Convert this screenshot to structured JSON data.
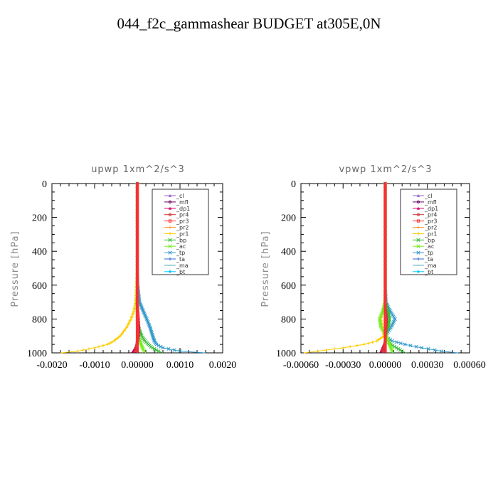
{
  "title": "044_f2c_gammashear  BUDGET at305E,0N",
  "legend_entries": [
    "_cl",
    "_mfl",
    "_dp1",
    "_pr4",
    "_pr3",
    "_pr2",
    "_pr1",
    "_bp",
    "_ac",
    "_tp",
    "_ta",
    "_ma",
    "_bt"
  ],
  "colors": {
    "_cl": "#9966cc",
    "_mfl": "#660066",
    "_dp1": "#cc0066",
    "_pr4": "#cc3333",
    "_pr3": "#ff3333",
    "_pr2": "#ff9933",
    "_pr1": "#ffcc00",
    "_bp": "#33bb33",
    "_ac": "#77ee22",
    "_tp": "#3399cc",
    "_ta": "#3366cc",
    "_ma": "#55aabb",
    "_bt": "#00ccff"
  },
  "chart_data": [
    {
      "type": "line",
      "subtitle": "upwp   1xm^2/s^3",
      "ylabel": "Pressure [hPa]",
      "ylim": [
        1000,
        0
      ],
      "xlim": [
        -0.002,
        0.002
      ],
      "xticks": [
        "-0.0020",
        "-0.0010",
        "0.00000",
        "0.0010",
        "0.0020"
      ],
      "yticks": [
        "0",
        "200",
        "400",
        "600",
        "800",
        "1000"
      ],
      "levels": [
        0,
        100,
        200,
        300,
        400,
        500,
        600,
        700,
        730,
        760,
        800,
        850,
        900,
        930,
        950,
        970,
        990,
        1000
      ],
      "series": [
        {
          "name": "_pr1",
          "values": [
            0,
            0,
            0,
            0,
            0,
            0,
            -2e-05,
            -4e-05,
            -6e-05,
            -9e-05,
            -0.00015,
            -0.00025,
            -0.0004,
            -0.00055,
            -0.0007,
            -0.001,
            -0.0014,
            -0.0018
          ]
        },
        {
          "name": "_tp",
          "values": [
            0,
            0,
            0,
            0,
            0,
            0,
            1e-05,
            5e-05,
            0.0001,
            0.00015,
            0.00022,
            0.0003,
            0.00036,
            0.0004,
            0.00045,
            0.0006,
            0.001,
            0.0016
          ]
        },
        {
          "name": "_bp",
          "values": [
            0,
            0,
            0,
            0,
            0,
            0,
            0,
            0,
            0,
            0,
            0,
            3e-05,
            0.0001,
            0.00018,
            0.00026,
            0.00035,
            0.0005,
            0.0006
          ]
        },
        {
          "name": "_ac",
          "values": [
            0,
            0,
            0,
            0,
            0,
            0,
            0,
            0,
            0,
            0,
            0,
            1e-05,
            3e-05,
            6e-05,
            9e-05,
            0.00012,
            0.00016,
            0.0002
          ]
        },
        {
          "name": "_dp1",
          "values": [
            0,
            0,
            0,
            0,
            0,
            0,
            0,
            0,
            1e-05,
            2e-05,
            3e-05,
            4e-05,
            3e-05,
            1e-05,
            -2e-05,
            -5e-05,
            -0.0001,
            -0.00015
          ]
        },
        {
          "name": "_pr4",
          "values": [
            0,
            0,
            0,
            0,
            0,
            0,
            0,
            0,
            0,
            1e-05,
            2e-05,
            2e-05,
            1e-05,
            0,
            -1e-05,
            -3e-05,
            -5e-05,
            -7e-05
          ]
        },
        {
          "name": "_cl",
          "values": [
            0,
            0,
            0,
            0,
            0,
            0,
            0,
            0,
            0,
            0,
            0,
            0,
            0,
            0,
            0,
            0,
            0,
            0
          ]
        },
        {
          "name": "_mfl",
          "values": [
            0,
            0,
            0,
            0,
            0,
            0,
            0,
            0,
            0,
            0,
            0,
            0,
            0,
            0,
            0,
            0,
            0,
            0
          ]
        },
        {
          "name": "_pr3",
          "values": [
            0,
            0,
            0,
            0,
            0,
            0,
            0,
            0,
            0,
            0,
            0,
            0,
            0,
            0,
            0,
            0,
            0,
            0
          ]
        }
      ]
    },
    {
      "type": "line",
      "subtitle": "vpwp   1xm^2/s^3",
      "ylabel": "Pressure [hPa]",
      "ylim": [
        1000,
        0
      ],
      "xlim": [
        -0.0006,
        0.0006
      ],
      "xticks": [
        "-0.00060",
        "-0.00030",
        "0.00000",
        "0.00030",
        "0.00060"
      ],
      "yticks": [
        "0",
        "200",
        "400",
        "600",
        "800",
        "1000"
      ],
      "levels": [
        0,
        100,
        200,
        300,
        400,
        500,
        600,
        700,
        730,
        760,
        800,
        850,
        900,
        930,
        950,
        970,
        990,
        1000
      ],
      "series": [
        {
          "name": "_pr1",
          "values": [
            0,
            0,
            0,
            0,
            0,
            0,
            0,
            -5e-06,
            -1e-05,
            -2e-05,
            -3e-05,
            -2e-05,
            -1e-05,
            -6e-05,
            -0.00015,
            -0.0003,
            -0.00048,
            -0.00058
          ]
        },
        {
          "name": "_tp",
          "values": [
            0,
            0,
            0,
            0,
            0,
            0,
            0,
            5e-06,
            2e-05,
            4e-05,
            7e-05,
            4e-05,
            0,
            5e-05,
            0.00014,
            0.00026,
            0.0004,
            0.00052
          ]
        },
        {
          "name": "_bp",
          "values": [
            0,
            0,
            0,
            0,
            0,
            0,
            0,
            0,
            1e-05,
            2e-05,
            3e-05,
            2e-05,
            0,
            2e-05,
            4e-05,
            8e-05,
            0.00012,
            0.00015
          ]
        },
        {
          "name": "_ac",
          "values": [
            0,
            0,
            0,
            0,
            0,
            0,
            0,
            0,
            -1e-05,
            -2e-05,
            -4e-05,
            -3e-05,
            1e-05,
            2e-05,
            3e-05,
            4e-05,
            5e-05,
            5e-05
          ]
        },
        {
          "name": "_dp1",
          "values": [
            0,
            0,
            0,
            0,
            0,
            0,
            0,
            0,
            0,
            5e-06,
            1e-05,
            5e-06,
            0,
            0,
            -1e-05,
            -2e-05,
            -3e-05,
            -4e-05
          ]
        },
        {
          "name": "_pr4",
          "values": [
            0,
            0,
            0,
            0,
            0,
            0,
            0,
            0,
            0,
            0,
            5e-06,
            5e-06,
            0,
            0,
            -5e-06,
            -1e-05,
            -2e-05,
            -2e-05
          ]
        },
        {
          "name": "_cl",
          "values": [
            0,
            0,
            0,
            0,
            0,
            0,
            0,
            0,
            0,
            0,
            0,
            0,
            0,
            0,
            0,
            0,
            0,
            0
          ]
        },
        {
          "name": "_mfl",
          "values": [
            0,
            0,
            0,
            0,
            0,
            0,
            0,
            0,
            0,
            0,
            0,
            0,
            0,
            0,
            0,
            0,
            0,
            0
          ]
        },
        {
          "name": "_pr3",
          "values": [
            0,
            0,
            0,
            0,
            0,
            0,
            0,
            0,
            0,
            0,
            0,
            0,
            0,
            0,
            0,
            0,
            0,
            0
          ]
        }
      ]
    }
  ]
}
